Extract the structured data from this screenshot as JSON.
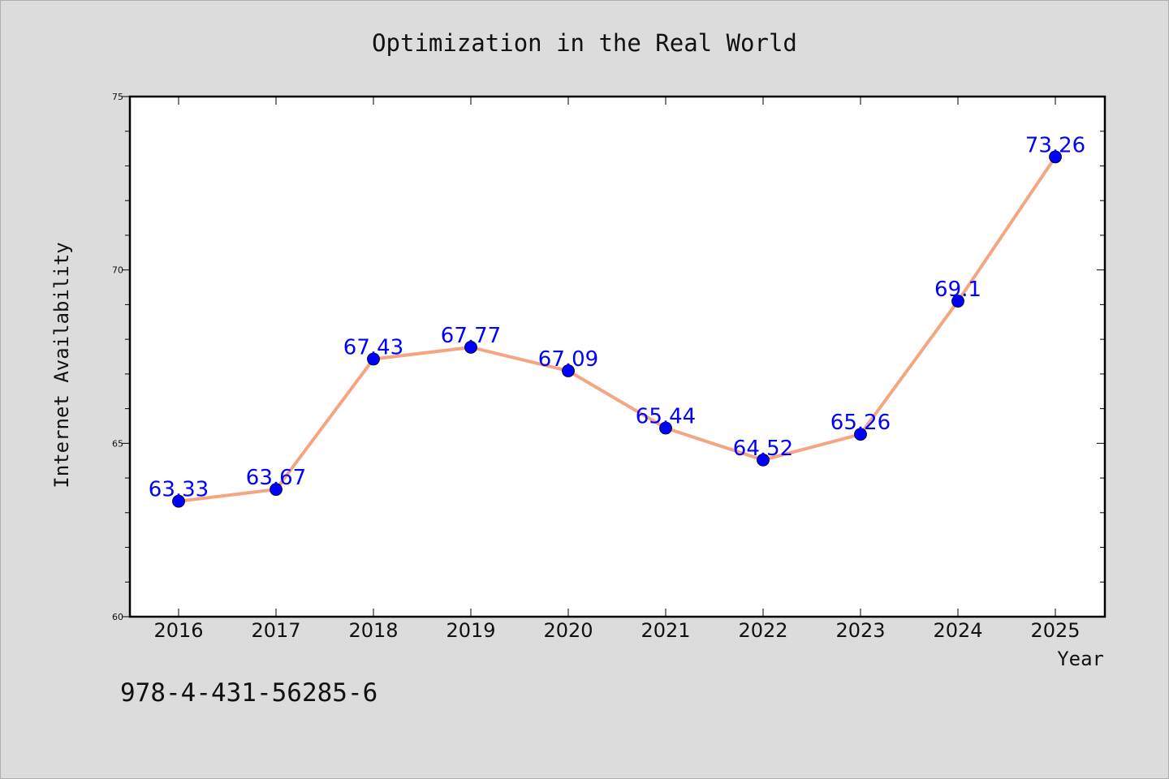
{
  "chart_data": {
    "type": "line",
    "title": "Optimization in the Real World",
    "xlabel": "Year",
    "ylabel": "Internet Availability",
    "x": [
      "2016",
      "2017",
      "2018",
      "2019",
      "2020",
      "2021",
      "2022",
      "2023",
      "2024",
      "2025"
    ],
    "series": [
      {
        "values": [
          63.33,
          63.67,
          67.43,
          67.77,
          67.09,
          65.44,
          64.52,
          65.26,
          69.1,
          73.26
        ],
        "labels": [
          "63.33",
          "63.67",
          "67.43",
          "67.77",
          "67.09",
          "65.44",
          "64.52",
          "65.26",
          "69.1",
          "73.26"
        ],
        "line_color": "#f4a582",
        "marker_color": "#0000ff"
      }
    ],
    "ylim": [
      60,
      75
    ],
    "yticks": [
      "60",
      "65",
      "70",
      "75"
    ],
    "grid": false,
    "legend": "none"
  },
  "footer_text": "978-4-431-56285-6",
  "colors": {
    "background": "#dcdcdc",
    "plot_area": "#ffffff",
    "data_label": "#0000ff"
  }
}
